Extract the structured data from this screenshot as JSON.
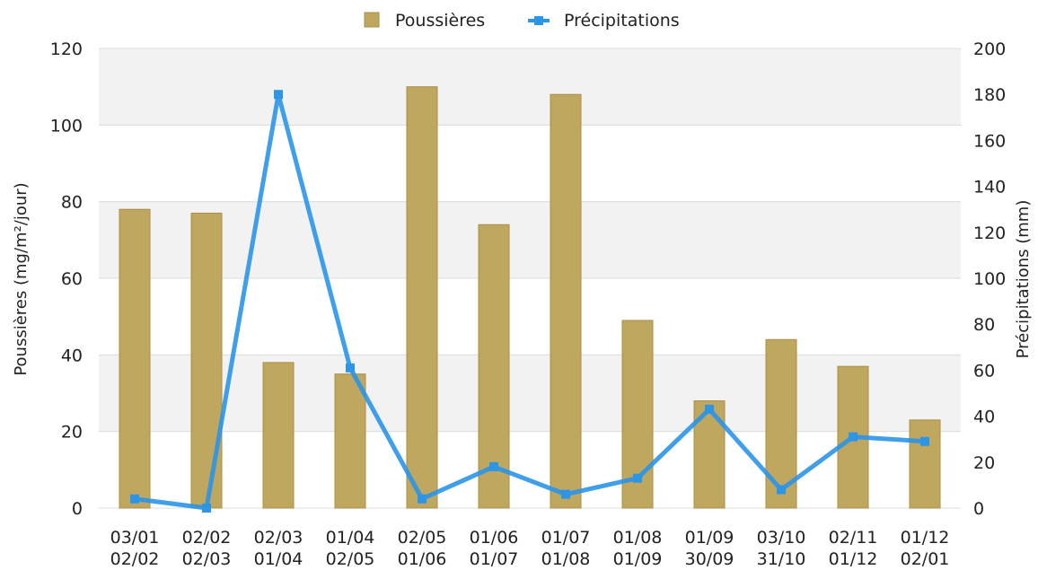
{
  "chart_data": {
    "type": "bar",
    "categories": [
      [
        "03/01",
        "02/02"
      ],
      [
        "02/02",
        "02/03"
      ],
      [
        "02/03",
        "01/04"
      ],
      [
        "01/04",
        "02/05"
      ],
      [
        "02/05",
        "01/06"
      ],
      [
        "01/06",
        "01/07"
      ],
      [
        "01/07",
        "01/08"
      ],
      [
        "01/08",
        "01/09"
      ],
      [
        "01/09",
        "30/09"
      ],
      [
        "03/10",
        "31/10"
      ],
      [
        "02/11",
        "01/12"
      ],
      [
        "01/12",
        "02/01"
      ]
    ],
    "series": [
      {
        "name": "Poussières",
        "type": "bar",
        "axis": "left",
        "color": "#bfa75f",
        "values": [
          78,
          77,
          38,
          35,
          110,
          74,
          108,
          49,
          28,
          44,
          37,
          23
        ]
      },
      {
        "name": "Précipitations",
        "type": "line",
        "axis": "right",
        "color": "#2b95e8",
        "values": [
          4,
          0,
          180,
          61,
          4,
          18,
          6,
          13,
          43,
          8,
          31,
          29
        ]
      }
    ],
    "ylabel_left": "Poussières (mg/m²/jour)",
    "ylabel_right": "Précipitations (mm)",
    "ylim_left": [
      0,
      120
    ],
    "yticks_left": [
      0,
      20,
      40,
      60,
      80,
      100,
      120
    ],
    "ylim_right": [
      0,
      200
    ],
    "yticks_right": [
      0,
      20,
      40,
      60,
      80,
      100,
      120,
      140,
      160,
      180,
      200
    ],
    "grid": true,
    "legend_position": "top-center"
  }
}
